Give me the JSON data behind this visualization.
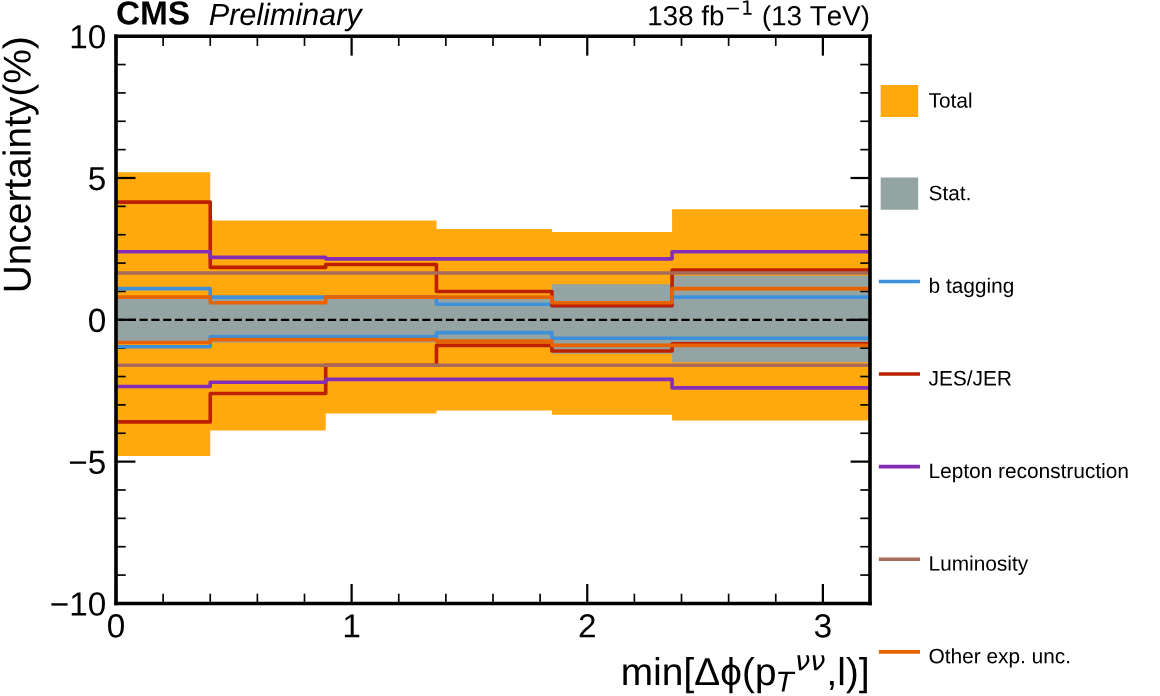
{
  "chart_data": {
    "type": "step",
    "title": "CMS",
    "subtitle": "Preliminary",
    "xlabel": "min[Δϕ(p$_{T}$$^{νν}$,l)]",
    "ylabel": "Uncertainty(%)",
    "annotations": [
      "138 fb$^{−1}$ (13 TeV)"
    ],
    "x": [
      0,
      0.4,
      0.89,
      1.36,
      1.85,
      2.36,
      3.2
    ],
    "series": [
      {
        "name": "Total",
        "type": "area",
        "color": "#ffa90e",
        "values": [
          5.2,
          3.5,
          3.5,
          3.2,
          3.1,
          3.9,
          3.9
        ]
      },
      {
        "type": "area",
        "color": "#ffa90e",
        "values": [
          -4.8,
          -3.9,
          -3.3,
          -3.2,
          -3.35,
          -3.55,
          -3.55
        ]
      },
      {
        "name": "Stat.",
        "type": "area",
        "color": "#94a4a2",
        "values": [
          0.8,
          0.8,
          0.8,
          0.8,
          1.25,
          1.55,
          1.55
        ]
      },
      {
        "type": "area",
        "color": "#94a4a2",
        "values": [
          -0.8,
          -0.8,
          -0.8,
          -0.8,
          -1.2,
          -1.5,
          -1.5
        ]
      },
      {
        "name": "b tagging",
        "color": "#3f90da",
        "values": [
          1.1,
          0.8,
          0.8,
          0.55,
          0.5,
          0.8,
          0.8
        ]
      },
      {
        "color": "#3f90da",
        "values": [
          -0.95,
          -0.6,
          -0.6,
          -0.45,
          -0.65,
          -0.65,
          -0.65
        ]
      },
      {
        "name": "JES/JER",
        "color": "#bd1f01",
        "values": [
          4.15,
          1.85,
          1.95,
          1.0,
          0.5,
          1.75,
          1.75
        ]
      },
      {
        "color": "#bd1f01",
        "values": [
          -3.6,
          -2.6,
          -1.6,
          -0.9,
          -1.1,
          -0.85,
          -0.85
        ]
      },
      {
        "name": "Lepton reconstruction",
        "color": "#832db6",
        "values": [
          2.4,
          2.2,
          2.15,
          2.15,
          2.15,
          2.4,
          2.4
        ]
      },
      {
        "color": "#832db6",
        "values": [
          -2.35,
          -2.2,
          -2.1,
          -2.1,
          -2.1,
          -2.4,
          -2.4
        ]
      },
      {
        "name": "Luminosity",
        "color": "#a96b59",
        "values": [
          1.65,
          1.65,
          1.65,
          1.65,
          1.65,
          1.65,
          1.65
        ]
      },
      {
        "color": "#a96b59",
        "values": [
          -1.6,
          -1.6,
          -1.6,
          -1.6,
          -1.6,
          -1.6,
          -1.6
        ]
      },
      {
        "name": "Other exp. unc.",
        "color": "#e76300",
        "values": [
          0.8,
          0.6,
          0.8,
          0.8,
          0.6,
          1.1,
          1.1
        ]
      },
      {
        "color": "#e76300",
        "values": [
          -0.8,
          -0.7,
          -0.7,
          -0.75,
          -0.9,
          -0.9,
          -0.9
        ]
      }
    ],
    "ref_lines": [
      {
        "axis": "y",
        "value": 0,
        "color": "#000000",
        "line_style": "dashed"
      }
    ],
    "xlim": [
      0,
      3.2
    ],
    "ylim": [
      -10,
      10
    ],
    "xticks": [
      0,
      1,
      2,
      3
    ],
    "yticks": [
      -10,
      -5,
      0,
      5,
      10
    ],
    "legend": "right",
    "grid": false,
    "line_style": "solid"
  }
}
